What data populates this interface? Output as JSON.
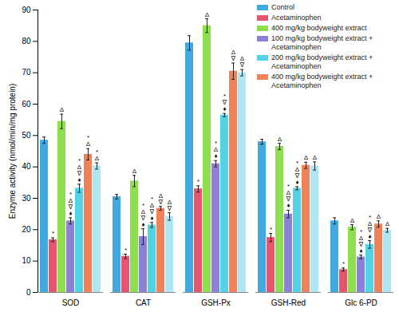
{
  "chart_data": {
    "type": "bar",
    "y_label": "Enzyme activity (nmol/min/mg protein)",
    "categories": [
      "SOD",
      "CAT",
      "GSH-Px",
      "GSH-Red",
      "Glc 6-PD"
    ],
    "ylim": [
      0,
      90
    ],
    "yticks": [
      0,
      10,
      20,
      30,
      40,
      50,
      60,
      70,
      80,
      90
    ],
    "grid": false,
    "legend": "upper right",
    "series": [
      {
        "name": "Control",
        "color": "#3fa9e0",
        "values": [
          48.5,
          30.5,
          79.5,
          48,
          22.8
        ],
        "errors": [
          1,
          0.7,
          2.3,
          0.8,
          1
        ],
        "annotations": [
          null,
          null,
          null,
          null,
          null
        ]
      },
      {
        "name": "Acetaminophen",
        "color": "#e6546f",
        "values": [
          16.8,
          11.5,
          33,
          17.5,
          7.3
        ],
        "errors": [
          0.6,
          0.7,
          1,
          1.3,
          0.5
        ],
        "annotations": [
          "*",
          "*",
          "*",
          "*",
          "*"
        ]
      },
      {
        "name": "400 mg/kg bodyweight extract",
        "color": "#8ddf4f",
        "values": [
          54.5,
          35.5,
          85,
          46.5,
          20.8
        ],
        "errors": [
          2.3,
          1.8,
          2.2,
          1,
          0.8
        ],
        "annotations": [
          "Δ",
          "Δ",
          "Δ",
          "Δ",
          "Δ"
        ]
      },
      {
        "name": "100 mg/kg bodyweight extract + Acetaminophen",
        "color": "#8c80d8",
        "values": [
          22.8,
          17.8,
          41,
          25,
          11.3
        ],
        "errors": [
          1,
          2.5,
          1,
          1.2,
          0.6
        ],
        "annotations": [
          "*Δ∇♦",
          "*Δ∇♦",
          "*Δ♦",
          "*Δ∇♦",
          "*Δ∇♦"
        ]
      },
      {
        "name": "200 mg/kg bodyweight extract + Acetaminophen",
        "color": "#52d3e3",
        "values": [
          33.2,
          21.5,
          56.5,
          33.2,
          15.3
        ],
        "errors": [
          1.3,
          0.8,
          0.5,
          0.5,
          1.2
        ],
        "annotations": [
          "*Δ∇♦",
          "*Δ∇♦",
          "*∇♦",
          "*Δ∇♦",
          "*Δ∇♦"
        ]
      },
      {
        "name": "400 mg/kg bodyweight extract + Acetaminophen",
        "color": "#f0825a",
        "values": [
          44,
          26.8,
          70.5,
          40.5,
          21.8
        ],
        "errors": [
          1.8,
          0.6,
          2.6,
          1,
          1
        ],
        "annotations": [
          "*Δ",
          "Δ∇",
          "Δ∇",
          "Δ",
          "Δ"
        ]
      },
      {
        "name": null,
        "color": "#aee6f5",
        "values": [
          40.3,
          24.2,
          70,
          40.3,
          19.8
        ],
        "errors": [
          1,
          1.2,
          1,
          1.3,
          0.6
        ],
        "annotations": [
          "*Δ",
          "Δ∇",
          "Δ∇",
          "Δ",
          "Δ"
        ]
      }
    ]
  }
}
